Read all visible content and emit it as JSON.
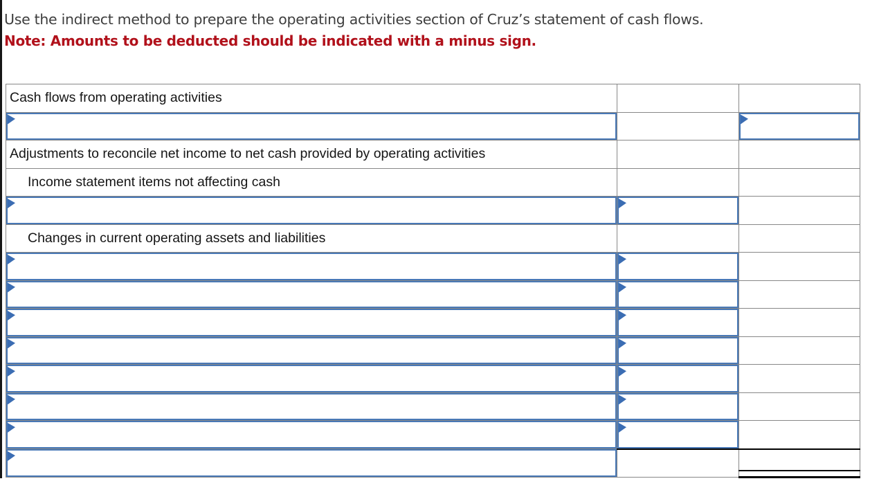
{
  "page": {
    "instruction": "Use the indirect method to prepare the operating activities section of Cruz’s statement of cash flows.",
    "note": "Note: Amounts to be deducted should be indicated with a minus sign."
  },
  "colors": {
    "input_border_blue": "#4878b6",
    "marker_blue": "#3b6db3",
    "grid_gray": "#878787",
    "note_red": "#b1111b",
    "instruction_gray": "#3e3e3e",
    "total_rule_black": "#000000"
  },
  "icons": {
    "row_marker": "right-pointing-triangle"
  },
  "table": {
    "columns": [
      "description",
      "amount_1",
      "amount_2"
    ],
    "rows": [
      {
        "row": 1,
        "type": "label",
        "indent": 0,
        "text": "Cash flows from operating activities"
      },
      {
        "row": 2,
        "type": "input",
        "input_cells": [
          "description",
          "amount_2"
        ],
        "values": {
          "description": "",
          "amount_2": ""
        }
      },
      {
        "row": 3,
        "type": "label",
        "indent": 0,
        "text": "Adjustments to reconcile net income to net cash provided by operating activities"
      },
      {
        "row": 4,
        "type": "label",
        "indent": 1,
        "text": "Income statement items not affecting cash"
      },
      {
        "row": 5,
        "type": "input",
        "input_cells": [
          "description",
          "amount_1"
        ],
        "values": {
          "description": "",
          "amount_1": ""
        }
      },
      {
        "row": 6,
        "type": "label",
        "indent": 1,
        "text": "Changes in current operating assets and liabilities"
      },
      {
        "row": 7,
        "type": "input",
        "input_cells": [
          "description",
          "amount_1"
        ],
        "values": {
          "description": "",
          "amount_1": ""
        }
      },
      {
        "row": 8,
        "type": "input",
        "input_cells": [
          "description",
          "amount_1"
        ],
        "values": {
          "description": "",
          "amount_1": ""
        }
      },
      {
        "row": 9,
        "type": "input",
        "input_cells": [
          "description",
          "amount_1"
        ],
        "values": {
          "description": "",
          "amount_1": ""
        }
      },
      {
        "row": 10,
        "type": "input",
        "input_cells": [
          "description",
          "amount_1"
        ],
        "values": {
          "description": "",
          "amount_1": ""
        }
      },
      {
        "row": 11,
        "type": "input",
        "input_cells": [
          "description",
          "amount_1"
        ],
        "values": {
          "description": "",
          "amount_1": ""
        }
      },
      {
        "row": 12,
        "type": "input",
        "input_cells": [
          "description",
          "amount_1"
        ],
        "values": {
          "description": "",
          "amount_1": ""
        }
      },
      {
        "row": 13,
        "type": "input",
        "input_cells": [
          "description",
          "amount_1"
        ],
        "values": {
          "description": "",
          "amount_1": ""
        }
      },
      {
        "row": 14,
        "type": "input",
        "input_cells": [
          "description"
        ],
        "values": {
          "description": ""
        },
        "total_cell": "amount_2",
        "total_value": ""
      }
    ]
  }
}
